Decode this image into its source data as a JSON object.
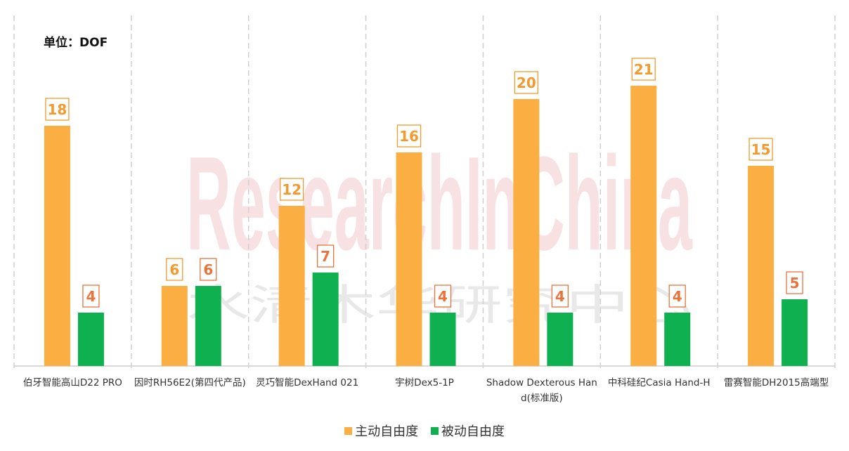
{
  "unit_label": "单位：DOF",
  "colors": {
    "active": "#FBAE42",
    "passive": "#0FB050",
    "label_text_active": "#F29A2E",
    "label_text_passive": "#E8743C"
  },
  "chart_data": {
    "type": "bar",
    "title": "",
    "xlabel": "",
    "ylabel": "",
    "ylim": [
      0,
      24
    ],
    "grid": "vertical dashed category separators",
    "legend_position": "bottom",
    "categories": [
      "伯牙智能高山D22 PRO",
      "因时RH56E2(第四代产品)",
      "灵巧智能DexHand 021",
      "宇树Dex5-1P",
      "Shadow Dexterous Hand(标准版)",
      "中科硅纪Casia Hand-H",
      "雷赛智能DH2015高端型"
    ],
    "series": [
      {
        "name": "主动自由度",
        "values": [
          18,
          6,
          12,
          16,
          20,
          21,
          15
        ]
      },
      {
        "name": "被动自由度",
        "values": [
          4,
          6,
          7,
          4,
          4,
          4,
          5
        ]
      }
    ]
  }
}
